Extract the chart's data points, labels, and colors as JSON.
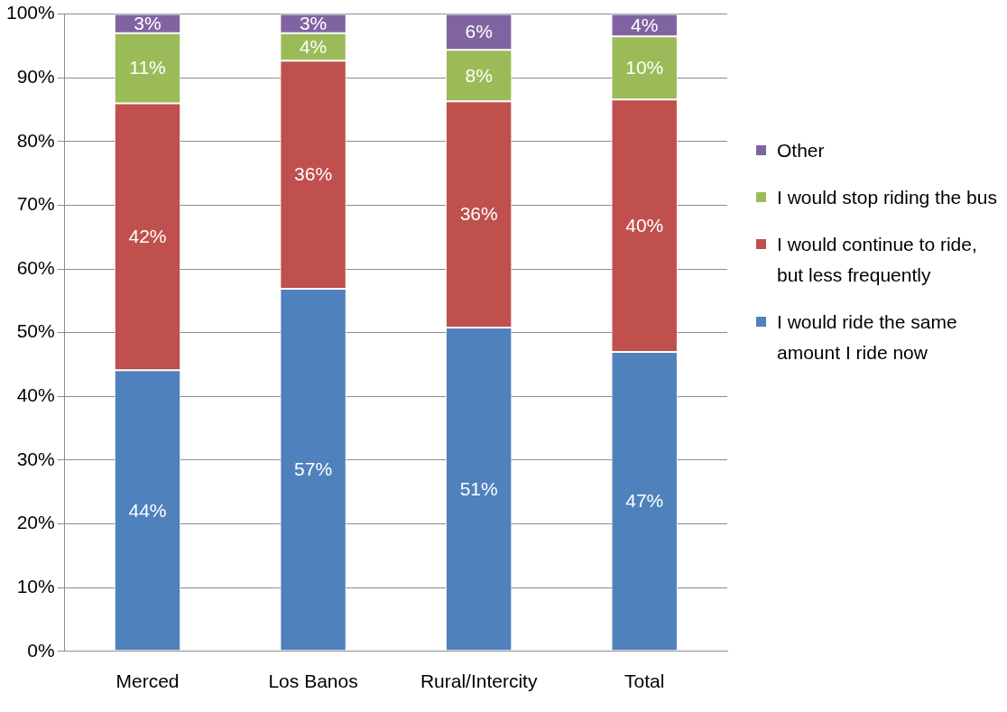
{
  "chart_data": {
    "type": "bar",
    "stacked": true,
    "categories": [
      "Merced",
      "Los Banos",
      "Rural/Intercity",
      "Total"
    ],
    "series": [
      {
        "name": "I would ride the same amount I ride now",
        "color": "#4f81bd",
        "values": [
          44.1,
          56.9,
          50.8,
          47
        ],
        "value_labels": [
          "44%",
          "57%",
          "51%",
          "47%"
        ]
      },
      {
        "name": "I would continue to ride, but less frequently",
        "color": "#c0504d",
        "values": [
          41.9,
          35.8,
          35.5,
          39.6
        ],
        "value_labels": [
          "42%",
          "36%",
          "36%",
          "40%"
        ]
      },
      {
        "name": "I would stop riding the bus",
        "color": "#9bbb59",
        "values": [
          11,
          4.3,
          8.1,
          9.9
        ],
        "value_labels": [
          "11%",
          "4%",
          "8%",
          "10%"
        ]
      },
      {
        "name": "Other",
        "color": "#8064a2",
        "values": [
          3,
          3,
          5.6,
          3.5
        ],
        "value_labels": [
          "3%",
          "3%",
          "6%",
          "4%"
        ]
      }
    ],
    "ylim": [
      0,
      100
    ],
    "yticks": [
      {
        "value": 0,
        "label": "0%"
      },
      {
        "value": 10,
        "label": "10%"
      },
      {
        "value": 20,
        "label": "20%"
      },
      {
        "value": 30,
        "label": "30%"
      },
      {
        "value": 40,
        "label": "40%"
      },
      {
        "value": 50,
        "label": "50%"
      },
      {
        "value": 60,
        "label": "60%"
      },
      {
        "value": 70,
        "label": "70%"
      },
      {
        "value": 80,
        "label": "80%"
      },
      {
        "value": 90,
        "label": "90%"
      },
      {
        "value": 100,
        "label": "100%"
      }
    ],
    "grid": "y",
    "legend": "right"
  }
}
